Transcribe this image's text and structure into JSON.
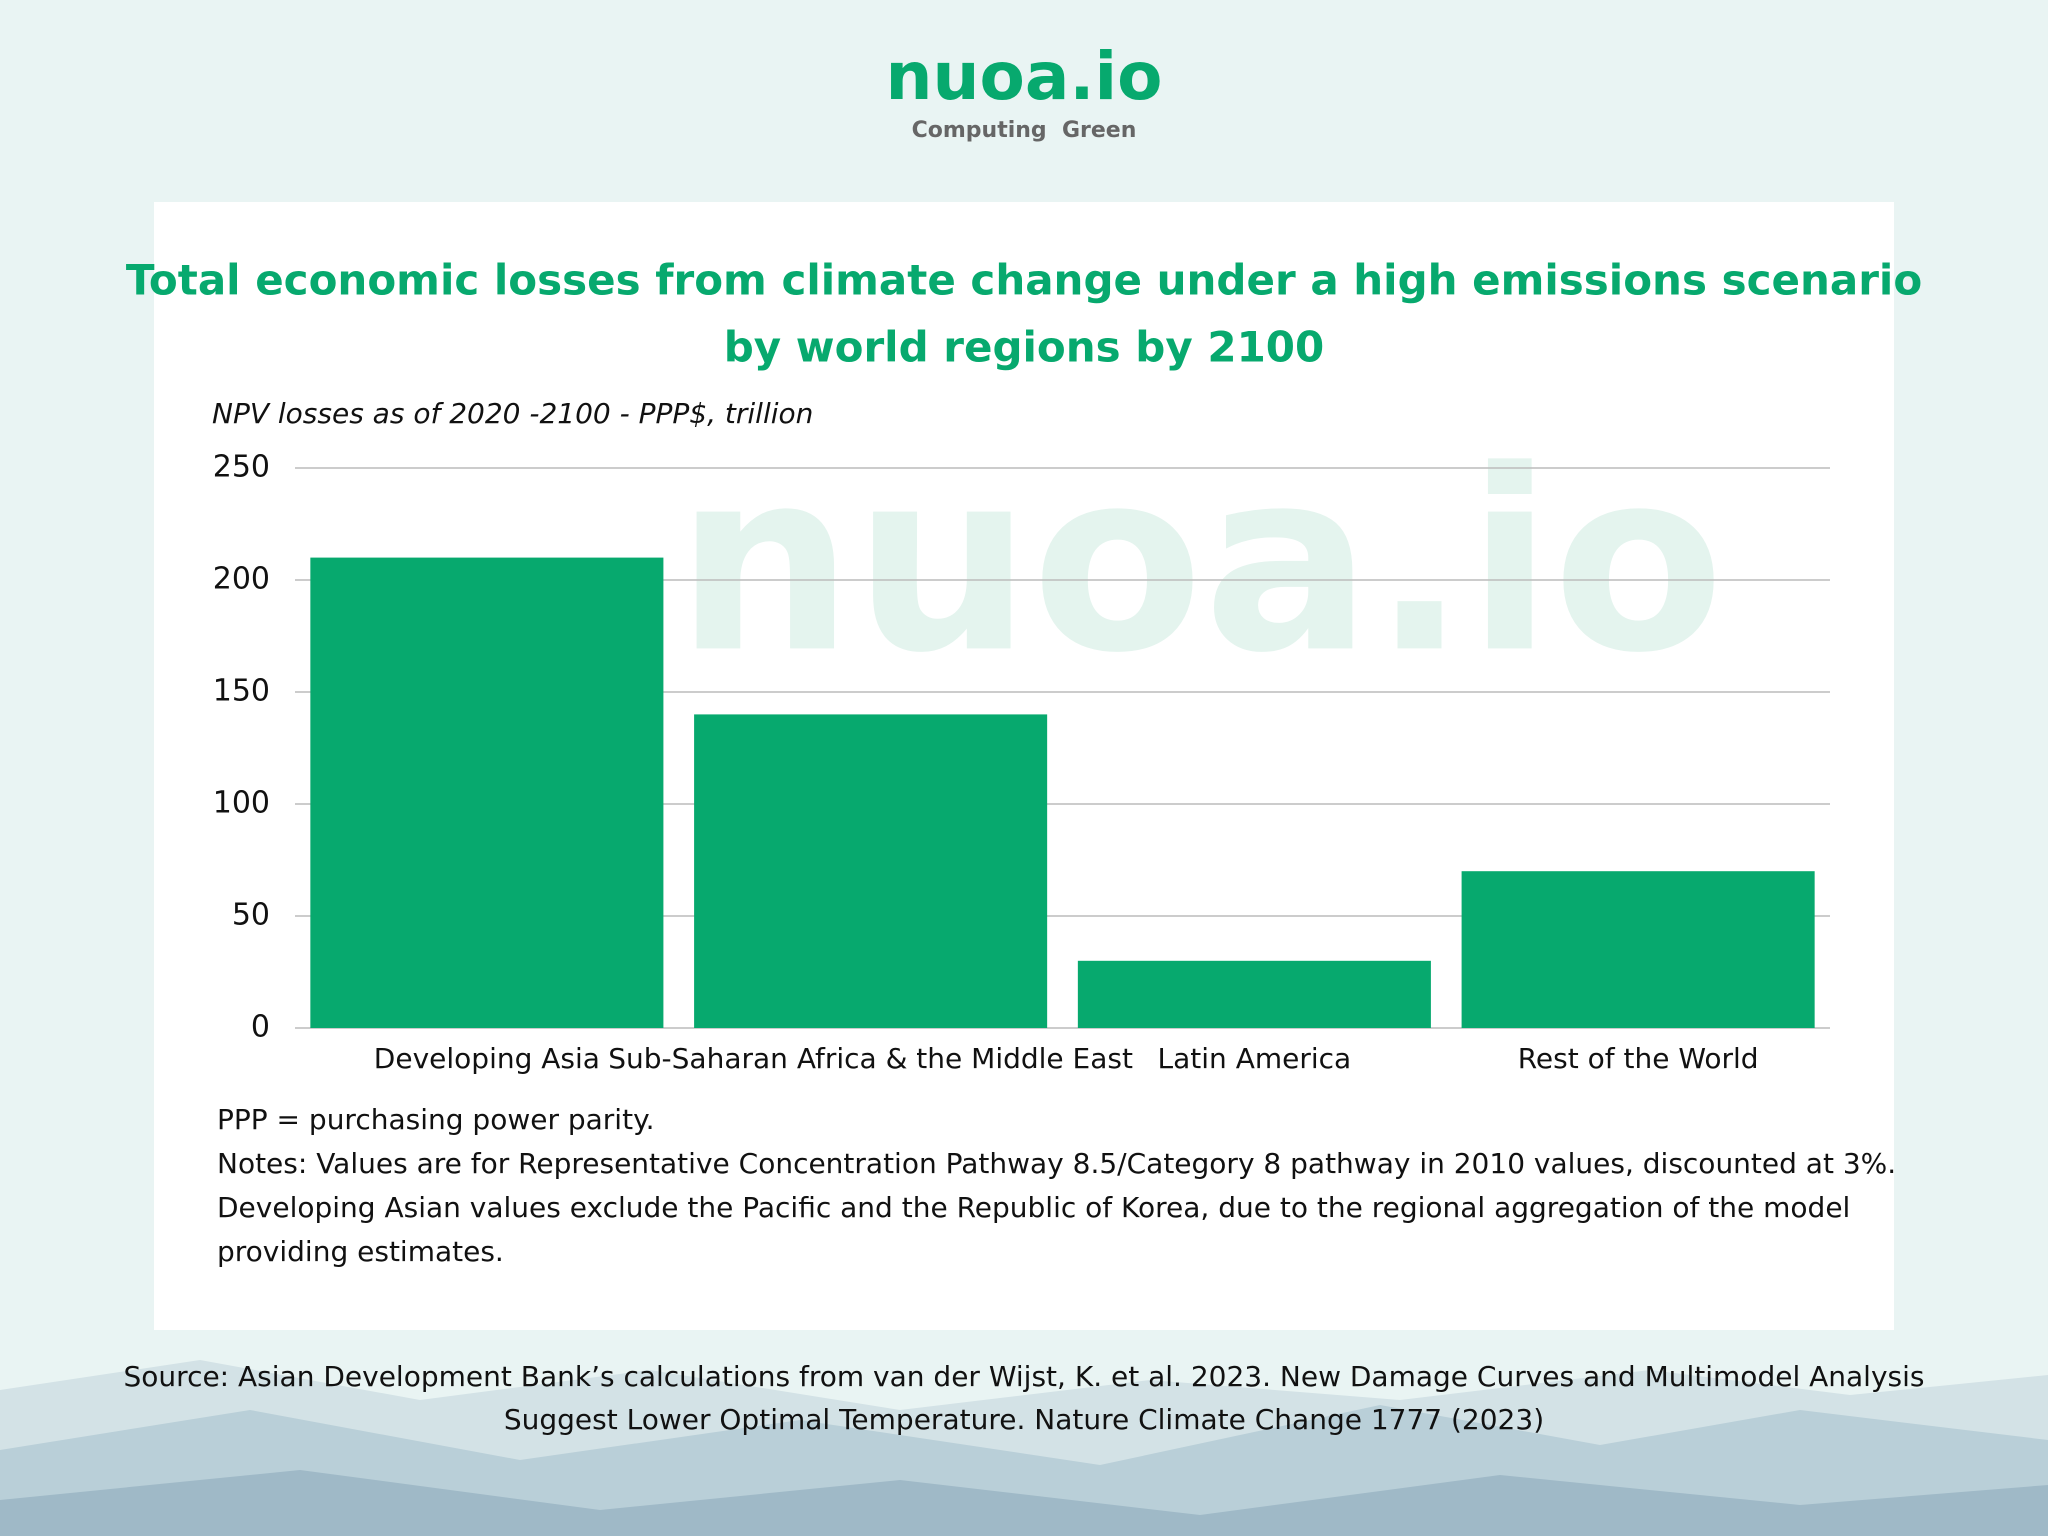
{
  "header": {
    "logo": "nuoa.io",
    "tagline": "Computing  Green"
  },
  "chart_data": {
    "type": "bar",
    "title": [
      "Total economic losses from climate change under a high emissions scenario",
      "by world regions by 2100"
    ],
    "y_label": "NPV losses as of 2020 -2100 - PPP$, trillion",
    "watermark": "nuoa.io",
    "categories": [
      "Developing Asia",
      "Sub-Saharan Africa & the Middle East",
      "Latin America",
      "Rest of the World"
    ],
    "values": [
      210,
      140,
      30,
      70
    ],
    "color": "#07a96e",
    "ylim": [
      0,
      250
    ],
    "yticks": [
      0,
      50,
      100,
      150,
      200,
      250
    ],
    "grid": true
  },
  "notes": [
    "PPP = purchasing power parity.",
    "Notes: Values are for Representative Concentration Pathway 8.5/Category 8 pathway in 2010 values, discounted at 3%.",
    "Developing Asian values exclude the Pacific and the Republic of Korea, due to the regional aggregation of the model",
    "providing estimates."
  ],
  "source": [
    "Source: Asian Development Bank’s calculations from van der Wijst, K. et al. 2023. New Damage Curves and Multimodel Analysis",
    "Suggest Lower Optimal Temperature. Nature Climate Change 1777 (2023)"
  ]
}
